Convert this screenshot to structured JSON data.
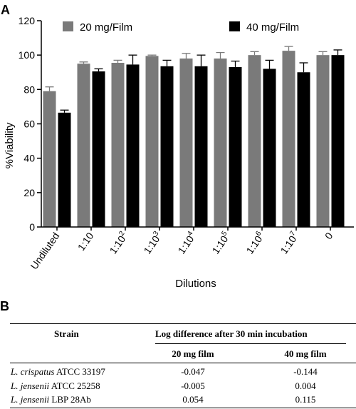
{
  "panel_a_label": "A",
  "panel_b_label": "B",
  "chart_data": {
    "type": "bar",
    "title": "",
    "xlabel": "Dilutions",
    "ylabel": "%Viability",
    "ylim": [
      0,
      120
    ],
    "yticks": [
      0,
      20,
      40,
      60,
      80,
      100,
      120
    ],
    "grid": false,
    "legend_placement": "top",
    "categories": [
      {
        "base": "Undiluted",
        "exp": ""
      },
      {
        "base": "1:10",
        "exp": ""
      },
      {
        "base": "1:10",
        "exp": "2"
      },
      {
        "base": "1:10",
        "exp": "3"
      },
      {
        "base": "1:10",
        "exp": "4"
      },
      {
        "base": "1:10",
        "exp": "5"
      },
      {
        "base": "1:10",
        "exp": "6"
      },
      {
        "base": "1:10",
        "exp": "7"
      },
      {
        "base": "0",
        "exp": ""
      }
    ],
    "series": [
      {
        "name": "20 mg/Film",
        "color": "#7a7a7a",
        "values": [
          79,
          95,
          95.5,
          99.5,
          98,
          98,
          100,
          102.5,
          100
        ],
        "errors": [
          2.5,
          1,
          1.5,
          0.5,
          3,
          3.5,
          2,
          2.5,
          2
        ]
      },
      {
        "name": "40 mg/Film",
        "color": "#000000",
        "values": [
          66.5,
          90.5,
          94.5,
          93.5,
          93.5,
          93,
          92,
          90,
          100
        ],
        "errors": [
          1.5,
          1.5,
          5.5,
          3.5,
          6.5,
          3.5,
          5,
          5.5,
          3
        ]
      }
    ]
  },
  "table": {
    "header_strain": "Strain",
    "header_group": "Log difference after 30 min incubation",
    "sub_20": "20 mg film",
    "sub_40": "40 mg film",
    "rows": [
      {
        "species": "L. crispatus",
        "strain": " ATCC 33197",
        "v20": "-0.047",
        "v40": "-0.144"
      },
      {
        "species": "L. jensenii",
        "strain": " ATCC 25258",
        "v20": "-0.005",
        "v40": "0.004"
      },
      {
        "species": "L. jensenii",
        "strain": " LBP 28Ab",
        "v20": "0.054",
        "v40": "0.115"
      }
    ]
  }
}
